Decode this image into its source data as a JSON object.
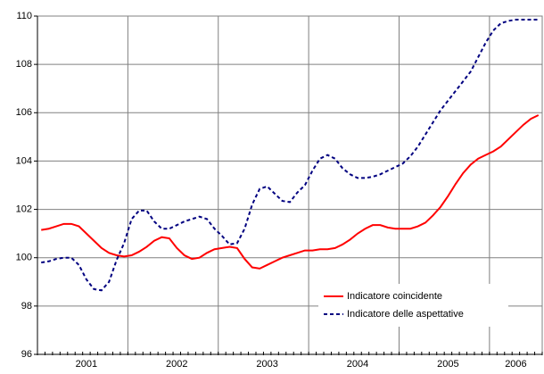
{
  "chart_data": {
    "type": "line",
    "categories": [
      null,
      null,
      null,
      null,
      null,
      null,
      "2001",
      null,
      null,
      null,
      null,
      null,
      null,
      null,
      null,
      null,
      null,
      null,
      "2002",
      null,
      null,
      null,
      null,
      null,
      null,
      null,
      null,
      null,
      null,
      null,
      "2003",
      null,
      null,
      null,
      null,
      null,
      null,
      null,
      null,
      null,
      null,
      null,
      "2004",
      null,
      null,
      null,
      null,
      null,
      null,
      null,
      null,
      null,
      null,
      null,
      "2005",
      null,
      null,
      null,
      null,
      null,
      null,
      null,
      null,
      "2006",
      null,
      null,
      null
    ],
    "series": [
      {
        "name": "Indicatore coincidente",
        "color": "#ff0000",
        "dash": false,
        "values": [
          101.15,
          101.2,
          101.3,
          101.4,
          101.4,
          101.3,
          101.0,
          100.7,
          100.4,
          100.2,
          100.1,
          100.05,
          100.1,
          100.25,
          100.45,
          100.7,
          100.85,
          100.8,
          100.4,
          100.1,
          99.95,
          100.0,
          100.2,
          100.35,
          100.4,
          100.45,
          100.4,
          99.95,
          99.6,
          99.55,
          99.7,
          99.85,
          100.0,
          100.1,
          100.2,
          100.3,
          100.3,
          100.35,
          100.35,
          100.4,
          100.55,
          100.75,
          101.0,
          101.2,
          101.35,
          101.35,
          101.25,
          101.2,
          101.2,
          101.2,
          101.3,
          101.45,
          101.75,
          102.1,
          102.55,
          103.05,
          103.5,
          103.85,
          104.1,
          104.25,
          104.4,
          104.6,
          104.9,
          105.2,
          105.5,
          105.75,
          105.9
        ]
      },
      {
        "name": "Indicatore delle aspettative",
        "color": "#000080",
        "dash": true,
        "values": [
          99.8,
          99.85,
          99.95,
          100.0,
          100.0,
          99.7,
          99.1,
          98.7,
          98.65,
          99.0,
          99.9,
          100.6,
          101.6,
          101.95,
          101.95,
          101.5,
          101.2,
          101.2,
          101.35,
          101.5,
          101.6,
          101.7,
          101.6,
          101.2,
          100.9,
          100.55,
          100.6,
          101.2,
          102.2,
          102.85,
          102.95,
          102.65,
          102.35,
          102.3,
          102.7,
          103.0,
          103.6,
          104.1,
          104.25,
          104.1,
          103.7,
          103.45,
          103.3,
          103.3,
          103.35,
          103.45,
          103.6,
          103.75,
          103.9,
          104.2,
          104.6,
          105.1,
          105.6,
          106.1,
          106.5,
          106.9,
          107.3,
          107.7,
          108.3,
          108.9,
          109.4,
          109.7,
          109.8,
          109.85,
          109.85,
          109.85,
          109.85
        ]
      }
    ],
    "ylim": [
      96,
      110
    ],
    "yticks": [
      96,
      98,
      100,
      102,
      104,
      106,
      108,
      110
    ],
    "grid": true
  }
}
